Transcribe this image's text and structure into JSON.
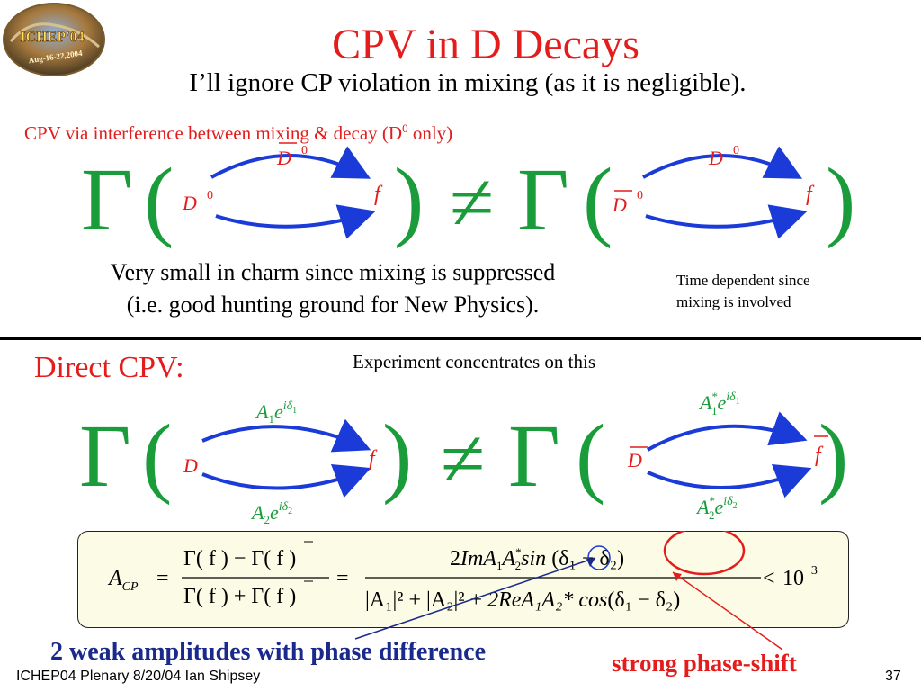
{
  "logo": {
    "line1": "ICHEP'04",
    "line2": "Aug-16-22,2004"
  },
  "title": "CPV in D Decays",
  "subtitle": "I’ll ignore CP violation in mixing (as it is negligible).",
  "section1": {
    "heading": "CPV via interference between mixing & decay (D",
    "heading_sup": "0",
    "heading_end": " only)",
    "note_line1": "Very small in charm since mixing is suppressed",
    "note_line2": "(i.e. good hunting ground for New Physics).",
    "side_note_line1": "Time dependent since",
    "side_note_line2": "mixing is involved"
  },
  "diagram1": {
    "gamma": "Γ",
    "lparen": "(",
    "rparen": ")",
    "neq": "≠",
    "left": {
      "initial": "D",
      "initial_sup": "0",
      "intermediate": "D",
      "intermediate_sup": "0",
      "final": "f"
    },
    "right": {
      "initial": "D",
      "initial_sup": "0",
      "intermediate": "D",
      "intermediate_sup": "0",
      "final": "f"
    }
  },
  "section2": {
    "heading": "Direct CPV:",
    "note": "Experiment concentrates on this"
  },
  "diagram2": {
    "left": {
      "initial": "D",
      "final": "f",
      "amp1": "A",
      "amp1_sub": "1",
      "amp1_exp": "e",
      "amp1_phase": "iδ",
      "amp1_phase_sub": "1",
      "amp2": "A",
      "amp2_sub": "2",
      "amp2_exp": "e",
      "amp2_phase": "iδ",
      "amp2_phase_sub": "2"
    },
    "right": {
      "initial": "D",
      "final": "f",
      "amp1": "A",
      "amp1_sub": "1",
      "amp1_sup": "*",
      "amp1_exp": "e",
      "amp1_phase": "iδ",
      "amp1_phase_sub": "1",
      "amp2": "A",
      "amp2_sub": "2",
      "amp2_sup": "*",
      "amp2_exp": "e",
      "amp2_phase": "iδ",
      "amp2_phase_sub": "2"
    }
  },
  "formula": {
    "lhs": "A",
    "lhs_sub": "CP",
    "eq": "=",
    "frac1_num": "Γ( f ) − Γ( f )",
    "frac1_den": "Γ( f ) + Γ( f )",
    "frac2_num_coef": "2",
    "frac2_num_im": "Im",
    "frac2_num_trig": "sin",
    "frac2_den_re": "2Re",
    "frac2_den_trig": "cos",
    "lt": "<",
    "bound": "10",
    "bound_exp": "−3"
  },
  "annotations": {
    "weak": "2 weak amplitudes with phase difference",
    "strong": "strong phase-shift"
  },
  "footer": {
    "left": "ICHEP04 Plenary 8/20/04 Ian Shipsey",
    "page": "37"
  },
  "colors": {
    "title": "#e41c1c",
    "green": "#1a9c3a",
    "navy": "#1a2a8c",
    "arrow": "#1a3bd8",
    "formula_bg": "#fbfbe6"
  }
}
